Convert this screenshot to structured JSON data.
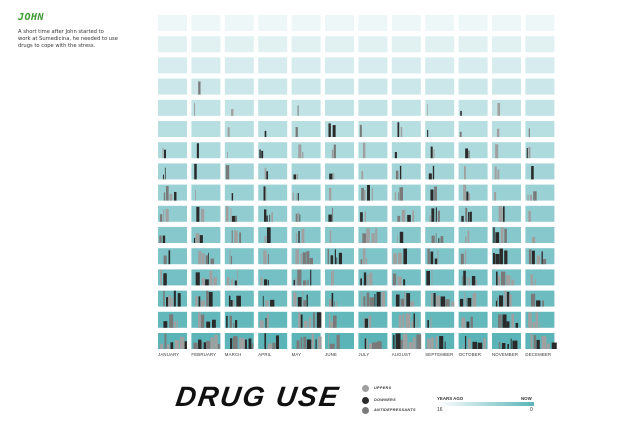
{
  "sidebar": {
    "name": "JOHN",
    "description": "A short time after John started to work at Sumedicina, he needed to use drugs to cope with the stress."
  },
  "title": "DRUG USE",
  "legend": {
    "items": [
      {
        "label": "UPPERS",
        "color": "#a0a0a0"
      },
      {
        "label": "DOWNERS",
        "color": "#2a2a2a"
      },
      {
        "label": "ANTIDEPRESSANTS",
        "color": "#7a7a7a"
      }
    ],
    "timescale": {
      "left_label": "YEARS AGO",
      "right_label": "NOW",
      "min_label": "16",
      "max_label": "0",
      "color_start": "#ffffff",
      "color_end": "#5ab4b8"
    }
  },
  "chart_data": {
    "type": "heatmap",
    "categories": [
      "JANUARY",
      "FEBRUARY",
      "MARCH",
      "APRIL",
      "MAY",
      "JUNE",
      "JULY",
      "AUGUST",
      "SEPTEMBER",
      "OCTOBER",
      "NOVEMBER",
      "DECEMBER"
    ],
    "rows": 16,
    "row_axis": "years ago (16 at top, 0 at bottom)",
    "series": [
      {
        "name": "UPPERS",
        "color": "#a0a0a0"
      },
      {
        "name": "DOWNERS",
        "color": "#2a2a2a"
      },
      {
        "name": "ANTIDEPRESSANTS",
        "color": "#7a7a7a"
      }
    ],
    "background_gradient": [
      "#eef7f8",
      "#5ab4b8"
    ]
  }
}
